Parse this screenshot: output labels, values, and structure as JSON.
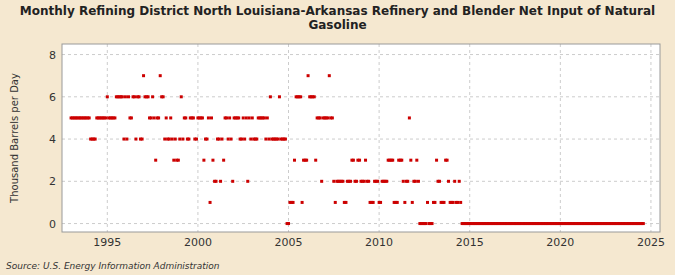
{
  "chart_data": {
    "type": "scatter",
    "title": "Monthly Refining District North Louisiana-Arkansas Refinery and Blender Net Input of Natural\nGasoline",
    "ylabel": "Thousand Barrels per Day",
    "source": "Source: U.S. Energy Information Administration",
    "color": "#cc0000",
    "marker": "square",
    "grid": true,
    "xlim": [
      1992.5,
      2025.5
    ],
    "ylim": [
      -0.4,
      8.5
    ],
    "xticks": [
      1995,
      2000,
      2005,
      2010,
      2015,
      2020,
      2025
    ],
    "yticks": [
      0,
      2,
      4,
      6,
      8
    ],
    "x": [
      1993.0,
      1993.08,
      1993.17,
      1993.25,
      1993.33,
      1993.42,
      1993.5,
      1993.58,
      1993.67,
      1993.75,
      1993.83,
      1993.92,
      1994.0,
      1994.08,
      1994.17,
      1994.25,
      1994.33,
      1994.42,
      1994.5,
      1994.58,
      1994.67,
      1994.75,
      1994.83,
      1994.92,
      1995.0,
      1995.08,
      1995.17,
      1995.25,
      1995.33,
      1995.42,
      1995.5,
      1995.58,
      1995.67,
      1995.75,
      1995.83,
      1995.92,
      1996.0,
      1996.08,
      1996.17,
      1996.25,
      1996.33,
      1996.42,
      1996.5,
      1996.58,
      1996.67,
      1996.75,
      1996.83,
      1996.92,
      1997.0,
      1997.08,
      1997.17,
      1997.25,
      1997.33,
      1997.42,
      1997.5,
      1997.58,
      1997.67,
      1997.75,
      1997.83,
      1997.92,
      1998.0,
      1998.08,
      1998.17,
      1998.25,
      1998.33,
      1998.42,
      1998.5,
      1998.58,
      1998.67,
      1998.75,
      1998.83,
      1998.92,
      1999.0,
      1999.08,
      1999.17,
      1999.25,
      1999.33,
      1999.42,
      1999.5,
      1999.58,
      1999.67,
      1999.75,
      1999.83,
      1999.92,
      2000.0,
      2000.08,
      2000.17,
      2000.25,
      2000.33,
      2000.42,
      2000.5,
      2000.58,
      2000.67,
      2000.75,
      2000.83,
      2000.92,
      2001.0,
      2001.08,
      2001.17,
      2001.25,
      2001.33,
      2001.42,
      2001.5,
      2001.58,
      2001.67,
      2001.75,
      2001.83,
      2001.92,
      2002.0,
      2002.08,
      2002.17,
      2002.25,
      2002.33,
      2002.42,
      2002.5,
      2002.58,
      2002.67,
      2002.75,
      2002.83,
      2002.92,
      2003.0,
      2003.08,
      2003.17,
      2003.25,
      2003.33,
      2003.42,
      2003.5,
      2003.58,
      2003.67,
      2003.75,
      2003.83,
      2003.92,
      2004.0,
      2004.08,
      2004.17,
      2004.25,
      2004.33,
      2004.42,
      2004.5,
      2004.58,
      2004.67,
      2004.75,
      2004.83,
      2004.92,
      2005.0,
      2005.08,
      2005.17,
      2005.25,
      2005.33,
      2005.42,
      2005.5,
      2005.58,
      2005.67,
      2005.75,
      2005.83,
      2005.92,
      2006.0,
      2006.08,
      2006.17,
      2006.25,
      2006.33,
      2006.42,
      2006.5,
      2006.58,
      2006.67,
      2006.75,
      2006.83,
      2006.92,
      2007.0,
      2007.08,
      2007.17,
      2007.25,
      2007.33,
      2007.42,
      2007.5,
      2007.58,
      2007.67,
      2007.75,
      2007.83,
      2007.92,
      2008.0,
      2008.08,
      2008.17,
      2008.25,
      2008.33,
      2008.42,
      2008.5,
      2008.58,
      2008.67,
      2008.75,
      2008.83,
      2008.92,
      2009.0,
      2009.08,
      2009.17,
      2009.25,
      2009.33,
      2009.42,
      2009.5,
      2009.58,
      2009.67,
      2009.75,
      2009.83,
      2009.92,
      2010.0,
      2010.08,
      2010.17,
      2010.25,
      2010.33,
      2010.42,
      2010.5,
      2010.58,
      2010.67,
      2010.75,
      2010.83,
      2010.92,
      2011.0,
      2011.08,
      2011.17,
      2011.25,
      2011.33,
      2011.42,
      2011.5,
      2011.58,
      2011.67,
      2011.75,
      2011.83,
      2011.92,
      2012.0,
      2012.08,
      2012.17,
      2012.25,
      2012.33,
      2012.42,
      2012.5,
      2012.58,
      2012.67,
      2012.75,
      2012.83,
      2012.92,
      2013.0,
      2013.08,
      2013.17,
      2013.25,
      2013.33,
      2013.42,
      2013.5,
      2013.58,
      2013.67,
      2013.75,
      2013.83,
      2013.92,
      2014.0,
      2014.08,
      2014.17,
      2014.25,
      2014.33,
      2014.42,
      2014.5,
      2014.58,
      2014.67,
      2014.75,
      2014.83,
      2014.92,
      2015.0,
      2015.08,
      2015.17,
      2015.25,
      2015.33,
      2015.42,
      2015.5,
      2015.58,
      2015.67,
      2015.75,
      2015.83,
      2015.92,
      2016.0,
      2016.08,
      2016.17,
      2016.25,
      2016.33,
      2016.42,
      2016.5,
      2016.58,
      2016.67,
      2016.75,
      2016.83,
      2016.92,
      2017.0,
      2017.08,
      2017.17,
      2017.25,
      2017.33,
      2017.42,
      2017.5,
      2017.58,
      2017.67,
      2017.75,
      2017.83,
      2017.92,
      2018.0,
      2018.08,
      2018.17,
      2018.25,
      2018.33,
      2018.42,
      2018.5,
      2018.58,
      2018.67,
      2018.75,
      2018.83,
      2018.92,
      2019.0,
      2019.08,
      2019.17,
      2019.25,
      2019.33,
      2019.42,
      2019.5,
      2019.58,
      2019.67,
      2019.75,
      2019.83,
      2019.92,
      2020.0,
      2020.08,
      2020.17,
      2020.25,
      2020.33,
      2020.42,
      2020.5,
      2020.58,
      2020.67,
      2020.75,
      2020.83,
      2020.92,
      2021.0,
      2021.08,
      2021.17,
      2021.25,
      2021.33,
      2021.42,
      2021.5,
      2021.58,
      2021.67,
      2021.75,
      2021.83,
      2021.92,
      2022.0,
      2022.08,
      2022.17,
      2022.25,
      2022.33,
      2022.42,
      2022.5,
      2022.58,
      2022.67,
      2022.75,
      2022.83,
      2022.92,
      2023.0,
      2023.08,
      2023.17,
      2023.25,
      2023.33,
      2023.42,
      2023.5,
      2023.58,
      2023.67,
      2023.75,
      2023.83,
      2023.92,
      2024.0,
      2024.08,
      2024.17,
      2024.25,
      2024.33,
      2024.42,
      2024.5,
      2024.58
    ],
    "values": [
      5,
      5,
      5,
      5,
      5,
      5,
      5,
      5,
      5,
      5,
      5,
      5,
      5,
      4,
      4,
      4,
      4,
      5,
      5,
      5,
      5,
      5,
      5,
      5,
      6,
      5,
      5,
      5,
      5,
      5,
      6,
      6,
      6,
      6,
      6,
      4,
      6,
      4,
      6,
      5,
      5,
      6,
      6,
      4,
      6,
      6,
      4,
      4,
      7,
      6,
      6,
      6,
      5,
      5,
      6,
      5,
      3,
      5,
      5,
      7,
      6,
      6,
      4,
      5,
      4,
      4,
      5,
      4,
      3,
      4,
      3,
      3,
      4,
      6,
      4,
      5,
      5,
      4,
      4,
      5,
      5,
      5,
      4,
      4,
      5,
      5,
      5,
      5,
      3,
      4,
      4,
      5,
      1,
      5,
      3,
      2,
      2,
      4,
      4,
      2,
      4,
      3,
      5,
      5,
      4,
      5,
      4,
      2,
      5,
      5,
      5,
      5,
      4,
      4,
      5,
      4,
      5,
      2,
      5,
      4,
      5,
      4,
      4,
      4,
      5,
      5,
      5,
      5,
      5,
      4,
      5,
      4,
      6,
      4,
      4,
      4,
      4,
      4,
      6,
      4,
      4,
      4,
      4,
      0,
      0,
      1,
      1,
      1,
      3,
      6,
      6,
      6,
      6,
      1,
      3,
      3,
      3,
      7,
      6,
      6,
      6,
      6,
      3,
      5,
      5,
      5,
      2,
      5,
      5,
      5,
      5,
      7,
      5,
      5,
      2,
      1,
      2,
      2,
      2,
      2,
      2,
      1,
      1,
      2,
      2,
      2,
      3,
      3,
      2,
      2,
      3,
      3,
      2,
      2,
      2,
      3,
      2,
      2,
      1,
      1,
      1,
      2,
      2,
      2,
      1,
      1,
      2,
      2,
      2,
      2,
      3,
      3,
      3,
      3,
      1,
      1,
      1,
      3,
      3,
      3,
      2,
      1,
      2,
      2,
      5,
      3,
      1,
      2,
      2,
      3,
      2,
      0,
      0,
      0,
      0,
      0,
      1,
      0,
      0,
      0,
      1,
      1,
      3,
      2,
      2,
      1,
      1,
      1,
      3,
      3,
      2,
      1,
      1,
      1,
      2,
      1,
      1,
      2,
      1,
      0,
      0,
      0,
      0,
      0,
      0,
      0,
      0,
      0,
      0,
      0,
      0,
      0,
      0,
      0,
      0,
      0,
      0,
      0,
      0,
      0,
      0,
      0,
      0,
      0,
      0,
      0,
      0,
      0,
      0,
      0,
      0,
      0,
      0,
      0,
      0,
      0,
      0,
      0,
      0,
      0,
      0,
      0,
      0,
      0,
      0,
      0,
      0,
      0,
      0,
      0,
      0,
      0,
      0,
      0,
      0,
      0,
      0,
      0,
      0,
      0,
      0,
      0,
      0,
      0,
      0,
      0,
      0,
      0,
      0,
      0,
      0,
      0,
      0,
      0,
      0,
      0,
      0,
      0,
      0,
      0,
      0,
      0,
      0,
      0,
      0,
      0,
      0,
      0,
      0,
      0,
      0,
      0,
      0,
      0,
      0,
      0,
      0,
      0,
      0,
      0,
      0,
      0,
      0,
      0,
      0,
      0,
      0,
      0,
      0,
      0,
      0,
      0,
      0,
      0,
      0,
      0,
      0,
      0,
      0,
      0
    ]
  }
}
